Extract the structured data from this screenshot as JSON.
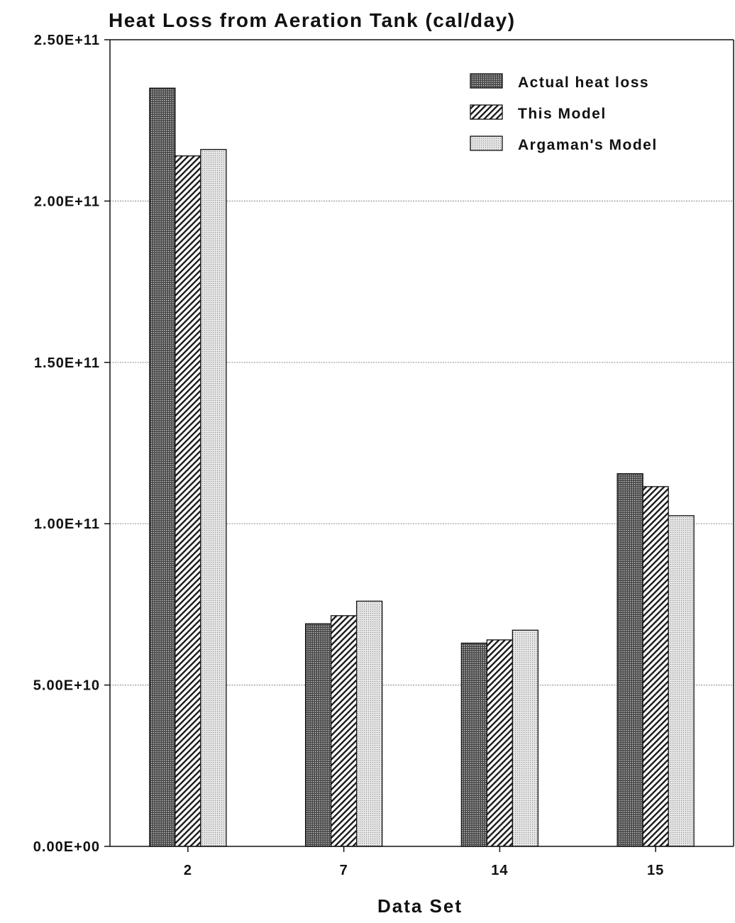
{
  "chart_data": {
    "type": "bar",
    "title": "Heat Loss from Aeration Tank (cal/day)",
    "xlabel": "Data Set",
    "ylabel": "",
    "categories": [
      "2",
      "7",
      "14",
      "15"
    ],
    "series": [
      {
        "name": "Actual heat loss",
        "values": [
          235000000000.0,
          69000000000.0,
          63000000000.0,
          115500000000.0
        ]
      },
      {
        "name": "This Model",
        "values": [
          214000000000.0,
          71500000000.0,
          64000000000.0,
          111500000000.0
        ]
      },
      {
        "name": "Argaman's Model",
        "values": [
          216000000000.0,
          76000000000.0,
          67000000000.0,
          102500000000.0
        ]
      }
    ],
    "ylim": [
      0,
      250000000000.0
    ],
    "yticks": [
      0,
      50000000000.0,
      100000000000.0,
      150000000000.0,
      200000000000.0,
      250000000000.0
    ],
    "ytick_labels": [
      "0.00E+00",
      "5.00E+10",
      "1.00E+11",
      "1.50E+11",
      "2.00E+11",
      "2.50E+11"
    ],
    "grid": "horizontal dotted",
    "legend_position": "top-right",
    "series_patterns": [
      "dense-dark-dots",
      "diagonal-hatch",
      "light-dots"
    ]
  }
}
